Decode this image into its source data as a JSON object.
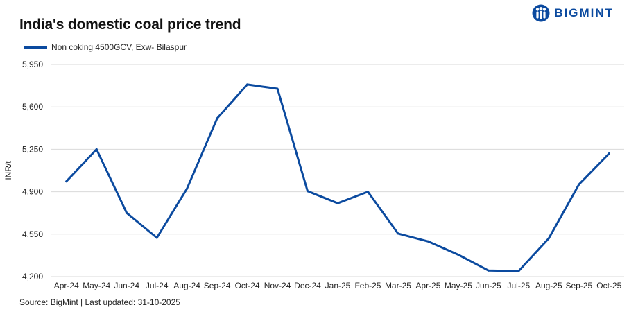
{
  "brand": {
    "name": "BIGMINT",
    "color": "#0b4a9f",
    "logo_icon": "people-figures-icon"
  },
  "header": {
    "title": "India's domestic coal price trend"
  },
  "footer": {
    "source": "BigMint | Last updated: 31-10-2025",
    "source_prefix": "Source: "
  },
  "chart_data": {
    "type": "line",
    "title": "India's domestic coal price trend",
    "xlabel": "",
    "ylabel": "INR/t",
    "ylim": [
      4200,
      5950
    ],
    "yticks": [
      4200,
      4550,
      4900,
      5250,
      5600,
      5950
    ],
    "ytick_labels": [
      "4,200",
      "4,550",
      "4,900",
      "5,250",
      "5,600",
      "5,950"
    ],
    "grid": true,
    "legend_position": "top-left",
    "categories": [
      "Apr-24",
      "May-24",
      "Jun-24",
      "Jul-24",
      "Aug-24",
      "Sep-24",
      "Oct-24",
      "Nov-24",
      "Dec-24",
      "Jan-25",
      "Feb-25",
      "Mar-25",
      "Apr-25",
      "May-25",
      "Jun-25",
      "Jul-25",
      "Aug-25",
      "Sep-25",
      "Oct-25"
    ],
    "series": [
      {
        "name": "Non coking 4500GCV, Exw- Bilaspur",
        "color": "#0b4a9f",
        "values": [
          4985,
          5250,
          4725,
          4520,
          4925,
          5505,
          5785,
          5750,
          4905,
          4805,
          4900,
          4555,
          4490,
          4380,
          4250,
          4245,
          4515,
          4960,
          5215
        ]
      }
    ]
  }
}
